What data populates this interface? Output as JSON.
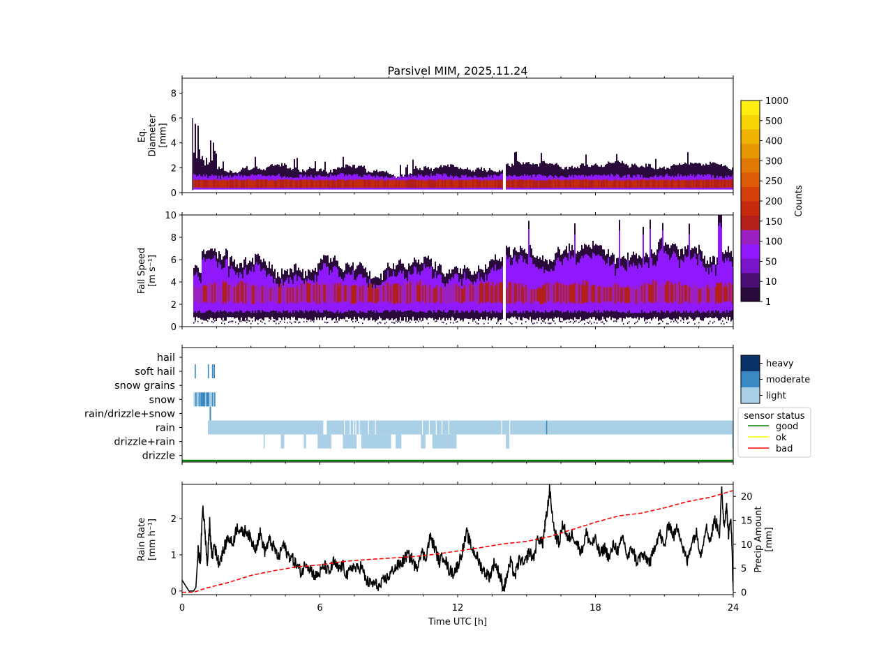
{
  "title": "Parsivel MIM, 2025.11.24",
  "colors": {
    "colormap": [
      "#2a0a3a",
      "#4b0f73",
      "#7a14c9",
      "#8f18ff",
      "#9a20c0",
      "#b3201a",
      "#c42a0c",
      "#d4400a",
      "#dd5a08",
      "#e27806",
      "#e89704",
      "#f0b203",
      "#f8d506",
      "#ffee10"
    ],
    "rain_rate_line": "#000000",
    "precip_line": "#ff0000",
    "weather_light": "#a9d0e6",
    "weather_moderate": "#3b88c2",
    "weather_heavy": "#0b3268",
    "status_good": "#008000",
    "status_ok": "#ffff00",
    "status_bad": "#ff0000"
  },
  "chart_data": [
    {
      "type": "heatmap",
      "name": "diameter",
      "ylabel": [
        "Eq.",
        "Diameter",
        "[mm]"
      ],
      "ylim": [
        0,
        9.2
      ],
      "yticks": [
        "0",
        "2",
        "4",
        "6",
        "8"
      ],
      "x_range_h": [
        0,
        24
      ],
      "data_onset_h": 0.5,
      "core_mm": [
        0.4,
        1.1
      ],
      "typical_top_mm": 1.8,
      "max_top_mm": 6.0,
      "gap_h": 14.0
    },
    {
      "type": "heatmap",
      "name": "fall_speed",
      "ylabel": [
        "Fall Speed",
        "[m s⁻¹]"
      ],
      "ylim": [
        0,
        10
      ],
      "yticks": [
        "0",
        "2",
        "4",
        "6",
        "8",
        "10"
      ],
      "x_range_h": [
        0,
        24
      ],
      "core_m_s": [
        2.0,
        4.0
      ],
      "typical_top_m_s": 7.0,
      "max_top_m_s": 10.0,
      "gap_h": 14.0
    },
    {
      "type": "table",
      "name": "weather_classification",
      "categories": [
        "hail",
        "soft hail",
        "snow grains",
        "snow",
        "rain/drizzle+snow",
        "rain",
        "drizzle+rain",
        "drizzle"
      ],
      "intensity_levels": [
        "light",
        "moderate",
        "heavy"
      ],
      "events": [
        {
          "category": "soft hail",
          "intensity": "moderate",
          "start_h": 0.55,
          "end_h": 0.6
        },
        {
          "category": "soft hail",
          "intensity": "moderate",
          "start_h": 1.12,
          "end_h": 1.17
        },
        {
          "category": "soft hail",
          "intensity": "moderate",
          "start_h": 1.3,
          "end_h": 1.36
        },
        {
          "category": "soft hail",
          "intensity": "moderate",
          "start_h": 1.38,
          "end_h": 1.43
        },
        {
          "category": "snow",
          "intensity": "light",
          "start_h": 0.5,
          "end_h": 1.45
        },
        {
          "category": "snow",
          "intensity": "moderate",
          "start_h": 0.58,
          "end_h": 0.63
        },
        {
          "category": "snow",
          "intensity": "moderate",
          "start_h": 0.72,
          "end_h": 0.77
        },
        {
          "category": "snow",
          "intensity": "moderate",
          "start_h": 0.8,
          "end_h": 1.0
        },
        {
          "category": "snow",
          "intensity": "moderate",
          "start_h": 1.05,
          "end_h": 1.18
        },
        {
          "category": "snow",
          "intensity": "moderate",
          "start_h": 1.3,
          "end_h": 1.34
        },
        {
          "category": "snow",
          "intensity": "moderate",
          "start_h": 1.4,
          "end_h": 1.43
        },
        {
          "category": "rain/drizzle+snow",
          "intensity": "moderate",
          "start_h": 1.2,
          "end_h": 1.26
        },
        {
          "category": "rain",
          "intensity": "light",
          "start_h": 1.12,
          "end_h": 6.15
        },
        {
          "category": "rain",
          "intensity": "light",
          "start_h": 6.3,
          "end_h": 24.0
        },
        {
          "category": "rain",
          "intensity": "moderate",
          "start_h": 15.85,
          "end_h": 15.9
        },
        {
          "category": "drizzle+rain",
          "intensity": "light",
          "start_h": 3.55,
          "end_h": 3.6
        },
        {
          "category": "drizzle+rain",
          "intensity": "light",
          "start_h": 4.3,
          "end_h": 4.45
        },
        {
          "category": "drizzle+rain",
          "intensity": "light",
          "start_h": 5.3,
          "end_h": 5.4
        },
        {
          "category": "drizzle+rain",
          "intensity": "light",
          "start_h": 5.9,
          "end_h": 6.5
        },
        {
          "category": "drizzle+rain",
          "intensity": "light",
          "start_h": 7.0,
          "end_h": 7.6
        },
        {
          "category": "drizzle+rain",
          "intensity": "light",
          "start_h": 7.8,
          "end_h": 9.1
        },
        {
          "category": "drizzle+rain",
          "intensity": "light",
          "start_h": 9.3,
          "end_h": 9.55
        },
        {
          "category": "drizzle+rain",
          "intensity": "light",
          "start_h": 10.4,
          "end_h": 10.6
        },
        {
          "category": "drizzle+rain",
          "intensity": "light",
          "start_h": 10.9,
          "end_h": 11.95
        },
        {
          "category": "drizzle+rain",
          "intensity": "light",
          "start_h": 14.1,
          "end_h": 14.25
        },
        {
          "category": "drizzle+rain",
          "intensity": "light",
          "start_h": 23.95,
          "end_h": 24.0
        }
      ],
      "sensor_status_legend_title": "sensor status",
      "sensor_status_labels": [
        "good",
        "ok",
        "bad"
      ],
      "sensor_status_series": [
        {
          "status": "good",
          "start_h": 0,
          "end_h": 24
        }
      ]
    },
    {
      "type": "line",
      "name": "rain_rate_and_accumulation",
      "xlabel": "Time UTC [h]",
      "xticks": [
        "0",
        "6",
        "12",
        "18",
        "24"
      ],
      "xlim": [
        0,
        24
      ],
      "ylabel_left": [
        "Rain Rate",
        "[mm h⁻¹]"
      ],
      "ylim_left": [
        -0.1,
        2.95
      ],
      "yticks_left": [
        "0",
        "1",
        "2"
      ],
      "ylabel_right": [
        "Precip Amount",
        "[mm]"
      ],
      "ylim_right": [
        -0.5,
        22.5
      ],
      "yticks_right": [
        "0",
        "5",
        "10",
        "15",
        "20"
      ],
      "series": [
        {
          "name": "rain rate",
          "style": "solid",
          "x": [
            0,
            0.3,
            0.5,
            0.6,
            0.7,
            0.8,
            0.9,
            1.0,
            1.1,
            1.2,
            1.3,
            1.4,
            1.5,
            1.6,
            1.8,
            2.0,
            2.2,
            2.4,
            2.6,
            2.8,
            3.0,
            3.2,
            3.4,
            3.6,
            3.8,
            4.0,
            4.2,
            4.4,
            4.6,
            4.8,
            5.0,
            5.2,
            5.4,
            5.6,
            5.8,
            6.0,
            6.2,
            6.4,
            6.6,
            6.8,
            7.0,
            7.2,
            7.4,
            7.6,
            7.8,
            8.0,
            8.2,
            8.4,
            8.6,
            8.8,
            9.0,
            9.2,
            9.4,
            9.6,
            9.8,
            10.0,
            10.2,
            10.4,
            10.6,
            10.8,
            11.0,
            11.2,
            11.4,
            11.6,
            11.8,
            12.0,
            12.2,
            12.4,
            12.6,
            12.8,
            13.0,
            13.2,
            13.4,
            13.6,
            13.8,
            13.9,
            14.0,
            14.1,
            14.3,
            14.5,
            14.7,
            14.9,
            15.1,
            15.3,
            15.5,
            15.7,
            15.8,
            15.9,
            16.0,
            16.2,
            16.4,
            16.6,
            16.8,
            17.0,
            17.2,
            17.4,
            17.6,
            17.8,
            18.0,
            18.2,
            18.4,
            18.6,
            18.8,
            19.0,
            19.2,
            19.4,
            19.6,
            19.8,
            20.0,
            20.2,
            20.4,
            20.6,
            20.8,
            21.0,
            21.2,
            21.4,
            21.6,
            21.8,
            22.0,
            22.2,
            22.4,
            22.6,
            22.8,
            23.0,
            23.2,
            23.4,
            23.5,
            23.6,
            23.7,
            23.8,
            23.9,
            24.0
          ],
          "y": [
            0.3,
            0.0,
            0.0,
            0.1,
            1.1,
            0.8,
            2.4,
            1.6,
            0.7,
            1.9,
            0.9,
            1.3,
            1.0,
            0.8,
            1.1,
            1.5,
            1.3,
            1.8,
            1.6,
            1.7,
            1.4,
            1.2,
            1.6,
            1.1,
            1.4,
            1.2,
            0.9,
            1.3,
            1.0,
            0.9,
            0.7,
            0.5,
            0.8,
            0.6,
            0.4,
            0.5,
            0.7,
            0.5,
            0.8,
            0.6,
            0.7,
            0.4,
            0.7,
            0.6,
            0.7,
            0.3,
            0.2,
            0.2,
            0.1,
            0.3,
            0.4,
            0.6,
            0.7,
            0.8,
            1.0,
            0.9,
            0.6,
            1.1,
            0.9,
            1.5,
            1.2,
            0.8,
            1.0,
            0.6,
            0.5,
            0.7,
            1.1,
            1.6,
            1.2,
            1.0,
            0.7,
            0.5,
            0.4,
            0.8,
            0.5,
            0.3,
            0.0,
            0.3,
            0.8,
            0.4,
            0.9,
            0.7,
            1.1,
            0.9,
            1.5,
            1.3,
            1.8,
            2.2,
            2.8,
            1.7,
            1.3,
            1.9,
            1.4,
            1.6,
            1.3,
            1.1,
            1.6,
            1.3,
            1.4,
            1.0,
            1.2,
            0.9,
            1.3,
            1.1,
            1.5,
            0.9,
            1.2,
            0.8,
            1.0,
            0.9,
            0.8,
            1.3,
            1.6,
            1.2,
            1.9,
            1.5,
            1.8,
            1.2,
            0.8,
            1.4,
            1.6,
            1.0,
            1.8,
            1.4,
            2.0,
            1.6,
            2.8,
            1.8,
            2.4,
            1.5,
            2.1,
            0.0
          ]
        },
        {
          "name": "precip amount",
          "style": "dashed",
          "axis": "right",
          "x": [
            0,
            0.5,
            1.0,
            2.0,
            3.0,
            4.0,
            5.0,
            6.0,
            7.0,
            8.0,
            9.0,
            10.0,
            11.0,
            12.0,
            13.0,
            14.0,
            15.0,
            16.0,
            17.0,
            18.0,
            19.0,
            20.0,
            21.0,
            22.0,
            23.0,
            24.0
          ],
          "y": [
            0,
            0,
            0.8,
            2.0,
            3.5,
            4.5,
            5.3,
            5.7,
            6.4,
            6.8,
            7.1,
            7.4,
            7.9,
            8.6,
            9.3,
            10.1,
            10.6,
            11.6,
            13.1,
            14.6,
            15.9,
            16.5,
            17.6,
            18.9,
            19.8,
            21.2
          ]
        }
      ]
    }
  ],
  "colorbar_counts": {
    "label": "Counts",
    "ticks": [
      "1000",
      "500",
      "400",
      "300",
      "250",
      "200",
      "150",
      "100",
      "50",
      "10",
      "1"
    ]
  },
  "weather_legend": {
    "labels": [
      "heavy",
      "moderate",
      "light"
    ]
  }
}
